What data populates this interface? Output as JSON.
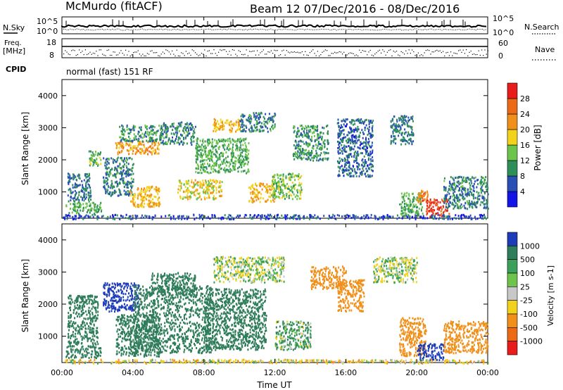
{
  "header": {
    "station": "McMurdo (fitACF)",
    "beam_info": "Beam 12  07/Dec/2016 - 08/Dec/2016",
    "mode_line": "normal (fast) 151 RF"
  },
  "summary_panels": {
    "nsky_label": "N.Sky",
    "nsearch_label": "N.Search",
    "freq_label": "Freq.",
    "freq_unit": "[MHz]",
    "nave_label": "Nave",
    "cpid_label": "CPID",
    "noise_ticks": [
      "10^5",
      "10^0"
    ],
    "noise_ticks_right": [
      "10^5",
      "10^0"
    ],
    "freq_ticks": [
      "18",
      "8"
    ],
    "nave_ticks": [
      "60",
      "0"
    ]
  },
  "chart_data": [
    {
      "type": "heatmap",
      "panel": "power",
      "ylabel": "Slant Range [km]",
      "ylim": [
        180,
        4500
      ],
      "y_ticks": [
        "1000",
        "2000",
        "3000",
        "4000"
      ],
      "colorbar_label": "Power [dB]",
      "colorbar_ticks": [
        "4",
        "8",
        "12",
        "16",
        "20",
        "24",
        "28"
      ],
      "colorbar_colors": [
        "#1414e6",
        "#2a4fb4",
        "#2f8f5a",
        "#6cc44a",
        "#f2d21a",
        "#f0901a",
        "#ec6a16",
        "#e81c1c"
      ],
      "regions": [
        {
          "t": [
            0.2,
            2.2
          ],
          "r": [
            350,
            700
          ],
          "level": 12
        },
        {
          "t": [
            0.3,
            1.6
          ],
          "r": [
            700,
            1600
          ],
          "level": 8
        },
        {
          "t": [
            1.5,
            2.2
          ],
          "r": [
            1800,
            2300
          ],
          "level": 13
        },
        {
          "t": [
            2.3,
            4.0
          ],
          "r": [
            900,
            2100
          ],
          "level": 9
        },
        {
          "t": [
            3.0,
            5.5
          ],
          "r": [
            2200,
            2600
          ],
          "level": 22
        },
        {
          "t": [
            3.2,
            5.6
          ],
          "r": [
            2600,
            3100
          ],
          "level": 10
        },
        {
          "t": [
            3.8,
            5.5
          ],
          "r": [
            550,
            1200
          ],
          "level": 20
        },
        {
          "t": [
            5.5,
            7.5
          ],
          "r": [
            2500,
            3200
          ],
          "level": 9
        },
        {
          "t": [
            6.5,
            9.0
          ],
          "r": [
            800,
            1400
          ],
          "level": 18
        },
        {
          "t": [
            7.5,
            10.5
          ],
          "r": [
            1600,
            2700
          ],
          "level": 12
        },
        {
          "t": [
            8.5,
            10.0
          ],
          "r": [
            2900,
            3300
          ],
          "level": 20
        },
        {
          "t": [
            10.0,
            12.0
          ],
          "r": [
            2900,
            3500
          ],
          "level": 9
        },
        {
          "t": [
            10.5,
            12.0
          ],
          "r": [
            700,
            1300
          ],
          "level": 20
        },
        {
          "t": [
            11.8,
            13.5
          ],
          "r": [
            800,
            1600
          ],
          "level": 14
        },
        {
          "t": [
            13.0,
            15.0
          ],
          "r": [
            2000,
            3100
          ],
          "level": 10
        },
        {
          "t": [
            15.5,
            17.5
          ],
          "r": [
            1500,
            3300
          ],
          "level": 7
        },
        {
          "t": [
            18.5,
            19.8
          ],
          "r": [
            2500,
            3400
          ],
          "level": 8
        },
        {
          "t": [
            19.0,
            20.3
          ],
          "r": [
            250,
            1000
          ],
          "level": 12
        },
        {
          "t": [
            20.0,
            20.6
          ],
          "r": [
            700,
            1100
          ],
          "level": 24
        },
        {
          "t": [
            20.5,
            21.8
          ],
          "r": [
            250,
            800
          ],
          "level": 28
        },
        {
          "t": [
            21.5,
            24.0
          ],
          "r": [
            500,
            1500
          ],
          "level": 9
        },
        {
          "t": [
            0.0,
            24.0
          ],
          "r": [
            180,
            320
          ],
          "level": 6
        }
      ]
    },
    {
      "type": "heatmap",
      "panel": "velocity",
      "xlabel": "Time UT",
      "ylabel": "Slant Range [km]",
      "xlim": [
        0,
        24
      ],
      "ylim": [
        180,
        4500
      ],
      "x_ticks": [
        "00:00",
        "04:00",
        "08:00",
        "12:00",
        "16:00",
        "20:00",
        "00:00"
      ],
      "y_ticks": [
        "1000",
        "2000",
        "3000",
        "4000"
      ],
      "colorbar_label": "Velocity [m s-1]",
      "colorbar_ticks": [
        "1000",
        "500",
        "100",
        "25",
        "-25",
        "-100",
        "-500",
        "-1000"
      ],
      "colorbar_colors": [
        "#1c3cb8",
        "#2f7d5a",
        "#3aa05a",
        "#6cc44a",
        "#c8c8c8",
        "#f2d21a",
        "#f0901a",
        "#ec6a16",
        "#e81c1c"
      ],
      "regions": [
        {
          "t": [
            0.2,
            2.2
          ],
          "r": [
            350,
            700
          ],
          "v": 300
        },
        {
          "t": [
            0.3,
            2.0
          ],
          "r": [
            700,
            2300
          ],
          "v": 200
        },
        {
          "t": [
            2.3,
            4.3
          ],
          "r": [
            1800,
            2700
          ],
          "v": 700
        },
        {
          "t": [
            3.0,
            5.5
          ],
          "r": [
            400,
            1700
          ],
          "v": 300
        },
        {
          "t": [
            4.0,
            8.5
          ],
          "r": [
            500,
            2600
          ],
          "v": 300
        },
        {
          "t": [
            5.0,
            7.5
          ],
          "r": [
            2300,
            3000
          ],
          "v": 200
        },
        {
          "t": [
            8.0,
            11.5
          ],
          "r": [
            600,
            2500
          ],
          "v": 300
        },
        {
          "t": [
            8.5,
            12.5
          ],
          "r": [
            2700,
            3500
          ],
          "v": 0
        },
        {
          "t": [
            12.0,
            14.0
          ],
          "r": [
            600,
            1500
          ],
          "v": 60
        },
        {
          "t": [
            14.0,
            16.0
          ],
          "r": [
            2500,
            3200
          ],
          "v": -300
        },
        {
          "t": [
            15.5,
            17.0
          ],
          "r": [
            1800,
            2800
          ],
          "v": -300
        },
        {
          "t": [
            17.5,
            20.0
          ],
          "r": [
            2700,
            3500
          ],
          "v": 0
        },
        {
          "t": [
            19.0,
            20.5
          ],
          "r": [
            400,
            1600
          ],
          "v": -300
        },
        {
          "t": [
            20.0,
            21.5
          ],
          "r": [
            250,
            800
          ],
          "v": 800
        },
        {
          "t": [
            21.5,
            24.0
          ],
          "r": [
            500,
            1500
          ],
          "v": -300
        },
        {
          "t": [
            0.0,
            24.0
          ],
          "r": [
            180,
            300
          ],
          "v": -60
        }
      ]
    }
  ]
}
